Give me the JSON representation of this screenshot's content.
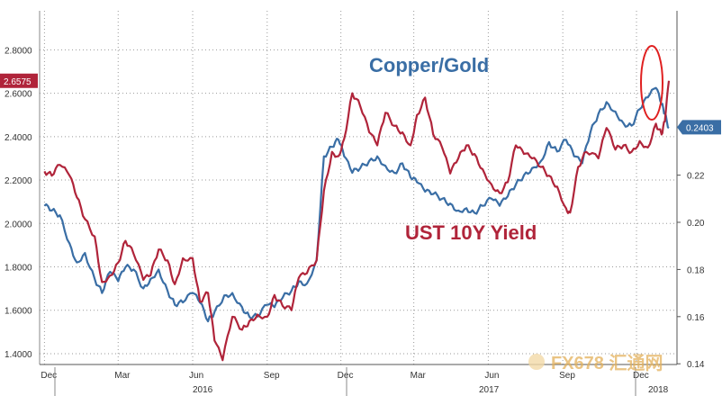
{
  "chart_data": {
    "type": "line",
    "title": "",
    "x_ticks": [
      "Dec",
      "Mar",
      "Jun",
      "Sep",
      "Dec",
      "Mar",
      "Jun",
      "Sep",
      "Dec"
    ],
    "x_years": [
      "2016",
      "2017",
      "2018"
    ],
    "y_left": {
      "ticks": [
        "1.4000",
        "1.6000",
        "1.8000",
        "2.0000",
        "2.2000",
        "2.4000",
        "2.6000",
        "2.8000"
      ],
      "range": [
        1.35,
        2.98
      ]
    },
    "y_right": {
      "ticks": [
        "0.14",
        "0.16",
        "0.18",
        "0.20",
        "0.22"
      ],
      "range": [
        0.1397,
        0.2897
      ]
    },
    "grid": true,
    "series": [
      {
        "name": "Copper/Gold",
        "axis": "right",
        "color": "#3a6ea5",
        "current_value": "0.2403",
        "points": [
          [
            "2015-12-01",
            0.207
          ],
          [
            "2015-12-10",
            0.205
          ],
          [
            "2015-12-20",
            0.203
          ],
          [
            "2016-01-01",
            0.191
          ],
          [
            "2016-01-10",
            0.183
          ],
          [
            "2016-01-20",
            0.187
          ],
          [
            "2016-02-01",
            0.176
          ],
          [
            "2016-02-10",
            0.17
          ],
          [
            "2016-02-20",
            0.179
          ],
          [
            "2016-03-01",
            0.175
          ],
          [
            "2016-03-10",
            0.181
          ],
          [
            "2016-03-20",
            0.18
          ],
          [
            "2016-04-01",
            0.172
          ],
          [
            "2016-04-10",
            0.176
          ],
          [
            "2016-04-20",
            0.18
          ],
          [
            "2016-05-01",
            0.171
          ],
          [
            "2016-05-10",
            0.165
          ],
          [
            "2016-05-20",
            0.166
          ],
          [
            "2016-06-01",
            0.17
          ],
          [
            "2016-06-10",
            0.166
          ],
          [
            "2016-06-20",
            0.158
          ],
          [
            "2016-06-28",
            0.162
          ],
          [
            "2016-07-10",
            0.169
          ],
          [
            "2016-07-20",
            0.17
          ],
          [
            "2016-08-01",
            0.164
          ],
          [
            "2016-08-10",
            0.16
          ],
          [
            "2016-08-20",
            0.16
          ],
          [
            "2016-09-01",
            0.165
          ],
          [
            "2016-09-10",
            0.164
          ],
          [
            "2016-09-20",
            0.168
          ],
          [
            "2016-10-01",
            0.171
          ],
          [
            "2016-10-10",
            0.175
          ],
          [
            "2016-10-20",
            0.174
          ],
          [
            "2016-11-01",
            0.184
          ],
          [
            "2016-11-10",
            0.228
          ],
          [
            "2016-11-20",
            0.232
          ],
          [
            "2016-11-28",
            0.235
          ],
          [
            "2016-12-05",
            0.228
          ],
          [
            "2016-12-15",
            0.221
          ],
          [
            "2016-12-25",
            0.223
          ],
          [
            "2017-01-05",
            0.226
          ],
          [
            "2017-01-15",
            0.228
          ],
          [
            "2017-01-25",
            0.224
          ],
          [
            "2017-02-05",
            0.221
          ],
          [
            "2017-02-15",
            0.225
          ],
          [
            "2017-02-25",
            0.219
          ],
          [
            "2017-03-05",
            0.217
          ],
          [
            "2017-03-15",
            0.213
          ],
          [
            "2017-03-25",
            0.212
          ],
          [
            "2017-04-05",
            0.21
          ],
          [
            "2017-04-15",
            0.208
          ],
          [
            "2017-04-25",
            0.205
          ],
          [
            "2017-05-05",
            0.206
          ],
          [
            "2017-05-15",
            0.204
          ],
          [
            "2017-05-25",
            0.207
          ],
          [
            "2017-06-05",
            0.21
          ],
          [
            "2017-06-15",
            0.207
          ],
          [
            "2017-06-25",
            0.211
          ],
          [
            "2017-07-05",
            0.216
          ],
          [
            "2017-07-15",
            0.22
          ],
          [
            "2017-07-25",
            0.223
          ],
          [
            "2017-08-05",
            0.226
          ],
          [
            "2017-08-15",
            0.234
          ],
          [
            "2017-08-25",
            0.23
          ],
          [
            "2017-09-05",
            0.235
          ],
          [
            "2017-09-15",
            0.228
          ],
          [
            "2017-09-25",
            0.225
          ],
          [
            "2017-10-05",
            0.238
          ],
          [
            "2017-10-15",
            0.246
          ],
          [
            "2017-10-25",
            0.251
          ],
          [
            "2017-11-05",
            0.247
          ],
          [
            "2017-11-15",
            0.242
          ],
          [
            "2017-11-25",
            0.241
          ],
          [
            "2017-12-05",
            0.248
          ],
          [
            "2017-12-15",
            0.253
          ],
          [
            "2017-12-25",
            0.257
          ],
          [
            "2018-01-01",
            0.25
          ],
          [
            "2018-01-05",
            0.246
          ],
          [
            "2018-01-10",
            0.24
          ]
        ]
      },
      {
        "name": "UST 10Y Yield",
        "axis": "left",
        "color": "#b0243a",
        "current_value": "2.6575",
        "points": [
          [
            "2015-12-01",
            2.24
          ],
          [
            "2015-12-10",
            2.22
          ],
          [
            "2015-12-20",
            2.27
          ],
          [
            "2016-01-01",
            2.22
          ],
          [
            "2016-01-10",
            2.12
          ],
          [
            "2016-01-20",
            2.02
          ],
          [
            "2016-02-01",
            1.94
          ],
          [
            "2016-02-10",
            1.73
          ],
          [
            "2016-02-20",
            1.76
          ],
          [
            "2016-03-01",
            1.82
          ],
          [
            "2016-03-10",
            1.92
          ],
          [
            "2016-03-20",
            1.86
          ],
          [
            "2016-04-01",
            1.74
          ],
          [
            "2016-04-10",
            1.76
          ],
          [
            "2016-04-20",
            1.88
          ],
          [
            "2016-05-01",
            1.83
          ],
          [
            "2016-05-10",
            1.72
          ],
          [
            "2016-05-20",
            1.84
          ],
          [
            "2016-06-01",
            1.84
          ],
          [
            "2016-06-10",
            1.64
          ],
          [
            "2016-06-20",
            1.68
          ],
          [
            "2016-06-28",
            1.46
          ],
          [
            "2016-07-08",
            1.37
          ],
          [
            "2016-07-20",
            1.57
          ],
          [
            "2016-08-01",
            1.51
          ],
          [
            "2016-08-10",
            1.55
          ],
          [
            "2016-08-20",
            1.58
          ],
          [
            "2016-09-01",
            1.57
          ],
          [
            "2016-09-10",
            1.67
          ],
          [
            "2016-09-20",
            1.62
          ],
          [
            "2016-10-01",
            1.6
          ],
          [
            "2016-10-10",
            1.75
          ],
          [
            "2016-10-20",
            1.77
          ],
          [
            "2016-11-01",
            1.83
          ],
          [
            "2016-11-10",
            2.15
          ],
          [
            "2016-11-20",
            2.33
          ],
          [
            "2016-11-28",
            2.31
          ],
          [
            "2016-12-05",
            2.39
          ],
          [
            "2016-12-15",
            2.6
          ],
          [
            "2016-12-25",
            2.54
          ],
          [
            "2017-01-05",
            2.42
          ],
          [
            "2017-01-15",
            2.36
          ],
          [
            "2017-01-25",
            2.51
          ],
          [
            "2017-02-05",
            2.45
          ],
          [
            "2017-02-15",
            2.42
          ],
          [
            "2017-02-25",
            2.36
          ],
          [
            "2017-03-05",
            2.5
          ],
          [
            "2017-03-15",
            2.58
          ],
          [
            "2017-03-25",
            2.41
          ],
          [
            "2017-04-05",
            2.35
          ],
          [
            "2017-04-15",
            2.23
          ],
          [
            "2017-04-25",
            2.3
          ],
          [
            "2017-05-05",
            2.36
          ],
          [
            "2017-05-15",
            2.32
          ],
          [
            "2017-05-25",
            2.25
          ],
          [
            "2017-06-05",
            2.18
          ],
          [
            "2017-06-15",
            2.14
          ],
          [
            "2017-06-25",
            2.19
          ],
          [
            "2017-07-05",
            2.36
          ],
          [
            "2017-07-15",
            2.32
          ],
          [
            "2017-07-25",
            2.3
          ],
          [
            "2017-08-05",
            2.26
          ],
          [
            "2017-08-15",
            2.22
          ],
          [
            "2017-08-25",
            2.17
          ],
          [
            "2017-09-05",
            2.07
          ],
          [
            "2017-09-10",
            2.05
          ],
          [
            "2017-09-20",
            2.26
          ],
          [
            "2017-09-30",
            2.33
          ],
          [
            "2017-10-15",
            2.3
          ],
          [
            "2017-10-25",
            2.44
          ],
          [
            "2017-11-05",
            2.34
          ],
          [
            "2017-11-15",
            2.36
          ],
          [
            "2017-11-25",
            2.33
          ],
          [
            "2017-12-05",
            2.38
          ],
          [
            "2017-12-15",
            2.35
          ],
          [
            "2017-12-25",
            2.46
          ],
          [
            "2018-01-01",
            2.41
          ],
          [
            "2018-01-05",
            2.47
          ],
          [
            "2018-01-10",
            2.6575
          ]
        ]
      }
    ],
    "annotations": [
      {
        "text": "Copper/Gold",
        "color": "#3a6ea5",
        "size": 22
      },
      {
        "text": "UST 10Y Yield",
        "color": "#b0243a",
        "size": 22
      },
      {
        "text": "red ellipse highlighting latest divergence",
        "color": "#e02020"
      }
    ]
  },
  "watermark": {
    "text": "FX678 汇通网",
    "color": "#e3b15c"
  },
  "colors": {
    "grid": "#9a9a9a",
    "left_axis_badge": "#b0243a",
    "right_axis_badge": "#3a6ea5"
  }
}
